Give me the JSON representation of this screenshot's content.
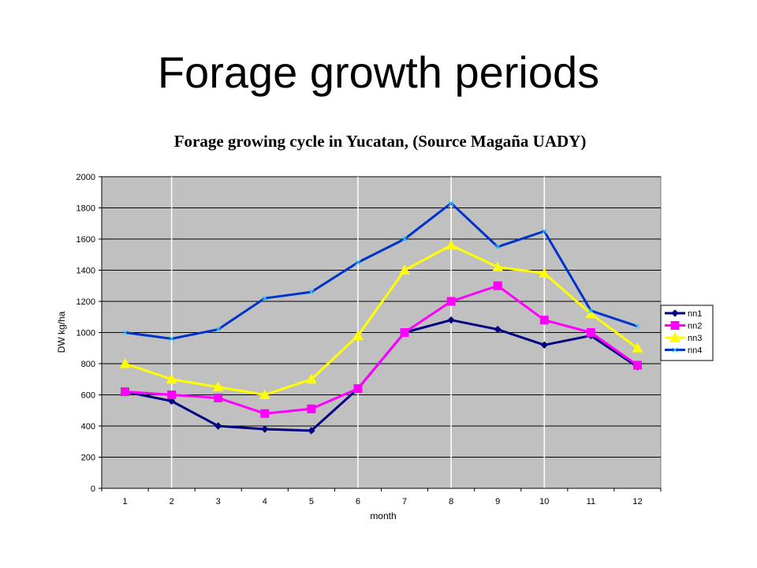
{
  "slide": {
    "title": "Forage growth periods"
  },
  "chart_data": {
    "type": "line",
    "title": "Forage growing cycle in Yucatan, (Source Magaña UADY)",
    "xlabel": "month",
    "ylabel": "DW kg/ha",
    "categories": [
      "1",
      "2",
      "3",
      "4",
      "5",
      "6",
      "7",
      "8",
      "9",
      "10",
      "11",
      "12"
    ],
    "ylim": [
      0,
      2000
    ],
    "yticks": [
      0,
      200,
      400,
      600,
      800,
      1000,
      1200,
      1400,
      1600,
      1800,
      2000
    ],
    "grid": "horizontal major gridlines",
    "legend": "right",
    "colors": {
      "plot_background": "#c0c0c0",
      "gridline": "#000000"
    },
    "series": [
      {
        "name": "nn1",
        "color": "#000080",
        "marker": "diamond",
        "values": [
          620,
          560,
          400,
          380,
          370,
          640,
          1000,
          1080,
          1020,
          920,
          980,
          780
        ]
      },
      {
        "name": "nn2",
        "color": "#ff00ff",
        "marker": "square",
        "values": [
          620,
          600,
          580,
          480,
          510,
          640,
          1000,
          1200,
          1300,
          1080,
          1000,
          790
        ]
      },
      {
        "name": "nn3",
        "color": "#ffff00",
        "marker": "triangle",
        "values": [
          800,
          700,
          650,
          600,
          700,
          980,
          1400,
          1560,
          1420,
          1380,
          1120,
          900
        ]
      },
      {
        "name": "nn4",
        "color": "#0033cc",
        "marker": "x",
        "values": [
          1000,
          960,
          1020,
          1220,
          1260,
          1450,
          1600,
          1830,
          1550,
          1650,
          1140,
          1040
        ]
      }
    ]
  }
}
